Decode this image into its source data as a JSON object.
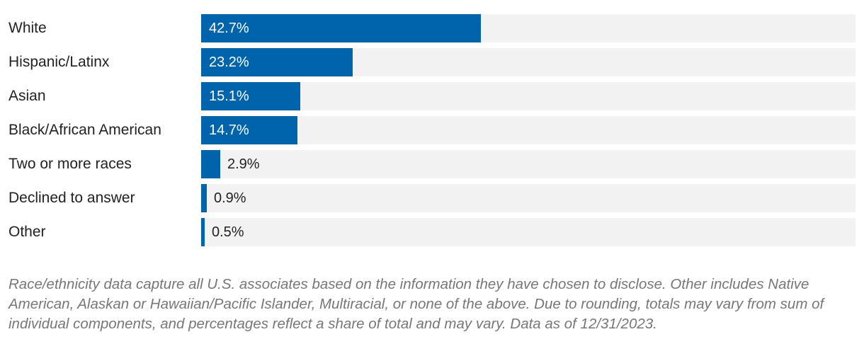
{
  "chart_data": {
    "type": "bar",
    "orientation": "horizontal",
    "categories": [
      "White",
      "Hispanic/Latinx",
      "Asian",
      "Black/African American",
      "Two or more races",
      "Declined to answer",
      "Other"
    ],
    "values": [
      42.7,
      23.2,
      15.1,
      14.7,
      2.9,
      0.9,
      0.5
    ],
    "value_labels": [
      "42.7%",
      "23.2%",
      "15.1%",
      "14.7%",
      "2.9%",
      "0.9%",
      "0.5%"
    ],
    "xlim": [
      0,
      100
    ],
    "grid": false,
    "legend": "none",
    "bar_color": "#0064ad",
    "track_color": "#f2f2f2"
  },
  "footnote": "Race/ethnicity data capture all U.S. associates based on the information they have chosen to disclose. Other includes Native American, Alaskan or Hawaiian/Pacific Islander, Multiracial, or none of the above. Due to rounding, totals may vary from sum of individual components, and percentages reflect a share of total and may vary. Data as of 12/31/2023."
}
